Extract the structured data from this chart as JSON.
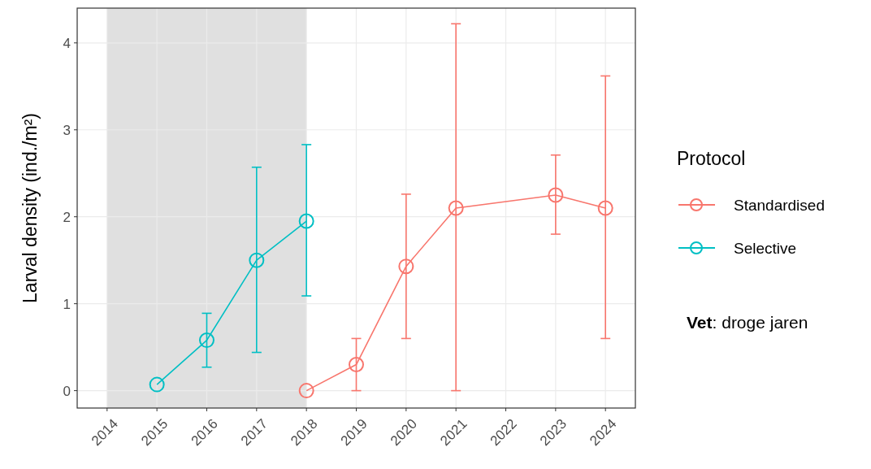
{
  "chart_data": {
    "type": "line",
    "ylabel": "Larval density (ind./m²)",
    "legend_title": "Protocol",
    "legend": "right",
    "marker": "circle",
    "grid": true,
    "xlim": [
      2013.4,
      2024.6
    ],
    "xticks": [
      2014,
      2015,
      2016,
      2017,
      2018,
      2019,
      2020,
      2021,
      2022,
      2023,
      2024
    ],
    "ylim": [
      -0.2,
      4.4
    ],
    "yticks": [
      0,
      1,
      2,
      3,
      4
    ],
    "bands": [
      {
        "axis": "x",
        "from": 2014,
        "to": 2018,
        "color": "#e0e0e0"
      }
    ],
    "annotations": [
      "Vet: droge jaren"
    ],
    "series": [
      {
        "name": "Standardised",
        "color": "#f8766d",
        "x": [
          2018,
          2019,
          2020,
          2021,
          2023,
          2024
        ],
        "values": [
          0,
          0.3,
          1.43,
          2.1,
          2.25,
          2.1
        ],
        "errors": [
          null,
          [
            0,
            0.6
          ],
          [
            0.6,
            2.26
          ],
          [
            0,
            4.22
          ],
          [
            1.8,
            2.71
          ],
          [
            0.6,
            3.62
          ]
        ]
      },
      {
        "name": "Selective",
        "color": "#00bfc4",
        "x": [
          2015,
          2016,
          2017,
          2018
        ],
        "values": [
          0.07,
          0.58,
          1.5,
          1.95
        ],
        "errors": [
          null,
          [
            0.27,
            0.89
          ],
          [
            0.44,
            2.57
          ],
          [
            1.09,
            2.83
          ]
        ]
      }
    ]
  }
}
